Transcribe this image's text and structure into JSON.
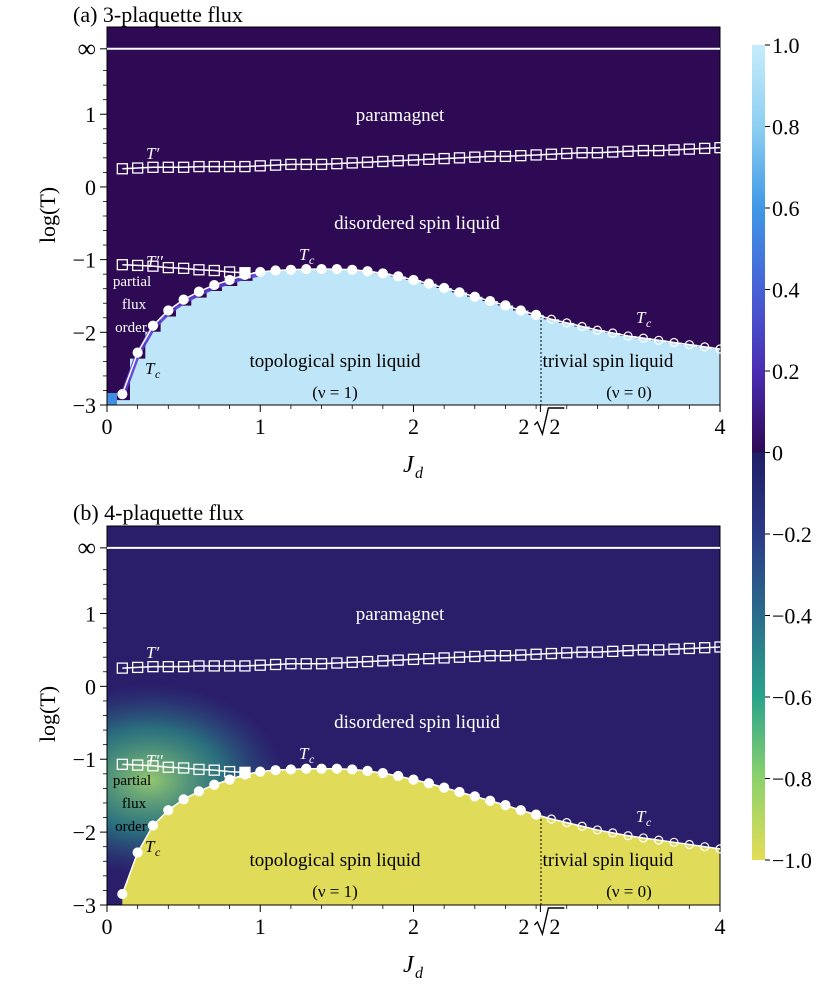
{
  "colors": {
    "purple_bg": "#2e0a55",
    "navy_bg": "#2a1e6b",
    "light_blue": "#bfe6f8",
    "yellow": "#e0dc5a",
    "line": "#ffffff"
  },
  "colorbar": {
    "ticks": [
      "1.0",
      "0.8",
      "0.6",
      "0.4",
      "0.2",
      "0",
      "−0.2",
      "−0.4",
      "−0.6",
      "−0.8",
      "−1.0"
    ],
    "ymin": -1.0,
    "ymax": 1.0
  },
  "chart_data": [
    {
      "type": "heatmap",
      "title": "(a) 3-plaquette flux",
      "xlabel_main": "J",
      "xlabel_sub": "d",
      "ylabel": "log(T)",
      "xlim": [
        0,
        4
      ],
      "ylim": [
        -3,
        2.2
      ],
      "x_ticks": [
        "0",
        "1",
        "2",
        "4"
      ],
      "x_tick_values": [
        0,
        1,
        2,
        4
      ],
      "special_tick": {
        "label": "2",
        "radical": "2",
        "value": 2.828
      },
      "y_ticks": [
        "−3",
        "−2",
        "−1",
        "0",
        "1"
      ],
      "y_tick_values": [
        -3,
        -2,
        -1,
        0,
        1
      ],
      "inf_tick": "∞",
      "infinity_value": 1.9,
      "phases": {
        "paramagnet": "paramagnet",
        "disordered": "disordered spin liquid",
        "topological": "topological spin liquid",
        "topological_nu": "(ν = 1)",
        "trivial": "trivial spin liquid",
        "trivial_nu": "(ν = 0)",
        "partial1": "partial",
        "partial2": "flux",
        "partial3": "order"
      },
      "curve_labels": {
        "tprime": "T′",
        "tdouble": "T′′",
        "tc_top": "T",
        "tc_right": "T",
        "tc_left": "T",
        "sub": "c"
      },
      "series": [
        {
          "name": "T′",
          "x": [
            0.1,
            0.2,
            0.3,
            0.4,
            0.5,
            0.6,
            0.7,
            0.8,
            0.9,
            1.0,
            1.1,
            1.2,
            1.3,
            1.4,
            1.5,
            1.6,
            1.7,
            1.8,
            1.9,
            2.0,
            2.1,
            2.2,
            2.3,
            2.4,
            2.5,
            2.6,
            2.7,
            2.8,
            2.9,
            3.0,
            3.1,
            3.2,
            3.3,
            3.4,
            3.5,
            3.6,
            3.7,
            3.8,
            3.9,
            4.0
          ],
          "y": [
            0.25,
            0.26,
            0.27,
            0.27,
            0.27,
            0.28,
            0.28,
            0.28,
            0.28,
            0.29,
            0.3,
            0.31,
            0.31,
            0.31,
            0.32,
            0.33,
            0.34,
            0.35,
            0.36,
            0.37,
            0.38,
            0.39,
            0.4,
            0.41,
            0.42,
            0.42,
            0.43,
            0.44,
            0.45,
            0.46,
            0.47,
            0.47,
            0.48,
            0.49,
            0.5,
            0.5,
            0.51,
            0.52,
            0.53,
            0.54
          ]
        },
        {
          "name": "T′′",
          "x": [
            0.1,
            0.2,
            0.3,
            0.4,
            0.5,
            0.6,
            0.7,
            0.8,
            0.9
          ],
          "y": [
            -1.07,
            -1.08,
            -1.09,
            -1.11,
            -1.12,
            -1.14,
            -1.15,
            -1.17,
            -1.18
          ]
        },
        {
          "name": "Tc",
          "x": [
            0.1,
            0.2,
            0.3,
            0.4,
            0.5,
            0.6,
            0.7,
            0.8,
            0.9,
            1.0,
            1.1,
            1.2,
            1.3,
            1.4,
            1.5,
            1.6,
            1.7,
            1.8,
            1.9,
            2.0,
            2.1,
            2.2,
            2.3,
            2.4,
            2.5,
            2.6,
            2.7,
            2.8,
            2.9,
            3.0,
            3.1,
            3.2,
            3.3,
            3.4,
            3.5,
            3.6,
            3.7,
            3.8,
            3.9,
            4.0
          ],
          "y": [
            -2.85,
            -2.28,
            -1.91,
            -1.7,
            -1.55,
            -1.44,
            -1.35,
            -1.28,
            -1.21,
            -1.17,
            -1.15,
            -1.14,
            -1.13,
            -1.13,
            -1.13,
            -1.14,
            -1.16,
            -1.19,
            -1.23,
            -1.28,
            -1.33,
            -1.39,
            -1.45,
            -1.51,
            -1.57,
            -1.63,
            -1.7,
            -1.76,
            -1.82,
            -1.87,
            -1.92,
            -1.97,
            -2.01,
            -2.05,
            -2.08,
            -2.11,
            -2.14,
            -2.17,
            -2.2,
            -2.23
          ]
        }
      ]
    },
    {
      "type": "heatmap",
      "title": "(b) 4-plaquette flux",
      "xlabel_main": "J",
      "xlabel_sub": "d",
      "ylabel": "log(T)",
      "xlim": [
        0,
        4
      ],
      "ylim": [
        -3,
        2.2
      ],
      "x_ticks": [
        "0",
        "1",
        "2",
        "4"
      ],
      "x_tick_values": [
        0,
        1,
        2,
        4
      ],
      "special_tick": {
        "label": "2",
        "radical": "2",
        "value": 2.828
      },
      "y_ticks": [
        "−3",
        "−2",
        "−1",
        "0",
        "1"
      ],
      "y_tick_values": [
        -3,
        -2,
        -1,
        0,
        1
      ],
      "inf_tick": "∞",
      "infinity_value": 1.9,
      "phases": {
        "paramagnet": "paramagnet",
        "disordered": "disordered spin liquid",
        "topological": "topological spin liquid",
        "topological_nu": "(ν = 1)",
        "trivial": "trivial spin liquid",
        "trivial_nu": "(ν = 0)",
        "partial1": "partial",
        "partial2": "flux",
        "partial3": "order"
      },
      "curve_labels": {
        "tprime": "T′",
        "tdouble": "T′′",
        "tc_top": "T",
        "tc_right": "T",
        "tc_left": "T",
        "sub": "c"
      },
      "series": [
        {
          "name": "T′",
          "x": [
            0.1,
            0.2,
            0.3,
            0.4,
            0.5,
            0.6,
            0.7,
            0.8,
            0.9,
            1.0,
            1.1,
            1.2,
            1.3,
            1.4,
            1.5,
            1.6,
            1.7,
            1.8,
            1.9,
            2.0,
            2.1,
            2.2,
            2.3,
            2.4,
            2.5,
            2.6,
            2.7,
            2.8,
            2.9,
            3.0,
            3.1,
            3.2,
            3.3,
            3.4,
            3.5,
            3.6,
            3.7,
            3.8,
            3.9,
            4.0
          ],
          "y": [
            0.25,
            0.26,
            0.27,
            0.27,
            0.27,
            0.28,
            0.28,
            0.28,
            0.28,
            0.29,
            0.3,
            0.31,
            0.31,
            0.31,
            0.32,
            0.33,
            0.34,
            0.35,
            0.36,
            0.37,
            0.38,
            0.39,
            0.4,
            0.41,
            0.42,
            0.42,
            0.43,
            0.44,
            0.45,
            0.46,
            0.47,
            0.47,
            0.48,
            0.49,
            0.5,
            0.5,
            0.51,
            0.52,
            0.53,
            0.54
          ]
        },
        {
          "name": "T′′",
          "x": [
            0.1,
            0.2,
            0.3,
            0.4,
            0.5,
            0.6,
            0.7,
            0.8,
            0.9
          ],
          "y": [
            -1.07,
            -1.08,
            -1.09,
            -1.11,
            -1.12,
            -1.14,
            -1.15,
            -1.17,
            -1.18
          ]
        },
        {
          "name": "Tc",
          "x": [
            0.1,
            0.2,
            0.3,
            0.4,
            0.5,
            0.6,
            0.7,
            0.8,
            0.9,
            1.0,
            1.1,
            1.2,
            1.3,
            1.4,
            1.5,
            1.6,
            1.7,
            1.8,
            1.9,
            2.0,
            2.1,
            2.2,
            2.3,
            2.4,
            2.5,
            2.6,
            2.7,
            2.8,
            2.9,
            3.0,
            3.1,
            3.2,
            3.3,
            3.4,
            3.5,
            3.6,
            3.7,
            3.8,
            3.9,
            4.0
          ],
          "y": [
            -2.85,
            -2.28,
            -1.91,
            -1.7,
            -1.55,
            -1.44,
            -1.35,
            -1.28,
            -1.21,
            -1.17,
            -1.15,
            -1.14,
            -1.13,
            -1.13,
            -1.13,
            -1.14,
            -1.16,
            -1.19,
            -1.23,
            -1.28,
            -1.33,
            -1.39,
            -1.45,
            -1.51,
            -1.57,
            -1.63,
            -1.7,
            -1.76,
            -1.82,
            -1.87,
            -1.92,
            -1.97,
            -2.01,
            -2.05,
            -2.08,
            -2.11,
            -2.14,
            -2.17,
            -2.2,
            -2.23
          ]
        }
      ]
    }
  ]
}
